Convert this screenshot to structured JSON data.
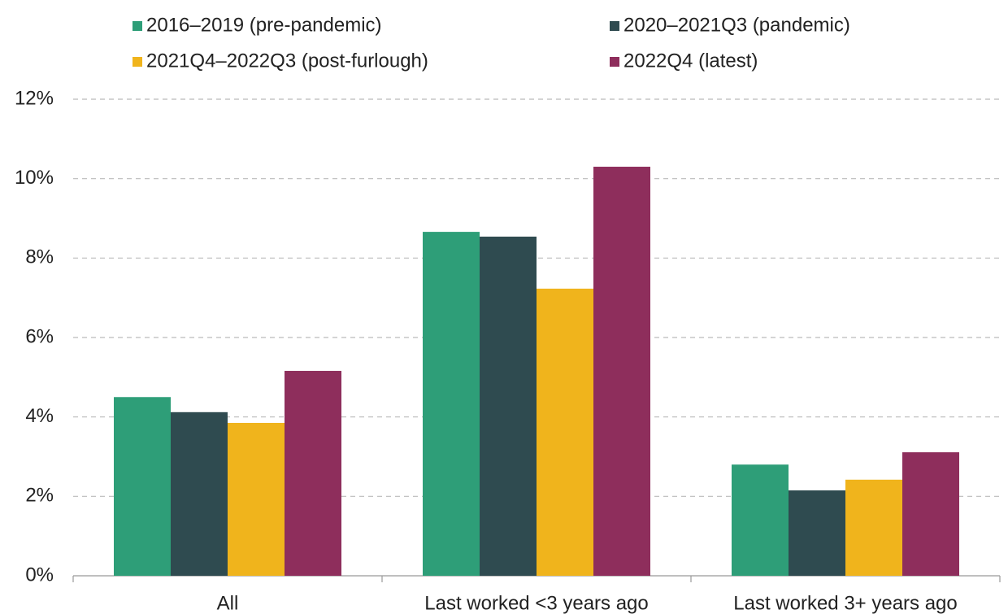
{
  "chart_data": {
    "type": "bar",
    "categories": [
      "All",
      "Last worked <3 years ago",
      "Last worked 3+ years ago"
    ],
    "series": [
      {
        "name": "2016–2019 (pre-pandemic)",
        "color": "#2e9e78",
        "values": [
          4.5,
          8.66,
          2.8
        ]
      },
      {
        "name": "2020–2021Q3 (pandemic)",
        "color": "#2f4b50",
        "values": [
          4.12,
          8.54,
          2.15
        ]
      },
      {
        "name": "2021Q4–2022Q3 (post-furlough)",
        "color": "#f0b41c",
        "values": [
          3.85,
          7.23,
          2.42
        ]
      },
      {
        "name": "2022Q4 (latest)",
        "color": "#8e2e5c",
        "values": [
          5.16,
          10.3,
          3.11
        ]
      }
    ],
    "ylim": [
      0,
      12
    ],
    "yticks": [
      {
        "value": 0,
        "label": "0%"
      },
      {
        "value": 2,
        "label": "2%"
      },
      {
        "value": 4,
        "label": "4%"
      },
      {
        "value": 6,
        "label": "6%"
      },
      {
        "value": 8,
        "label": "8%"
      },
      {
        "value": 10,
        "label": "10%"
      },
      {
        "value": 12,
        "label": "12%"
      }
    ],
    "grid": true
  }
}
